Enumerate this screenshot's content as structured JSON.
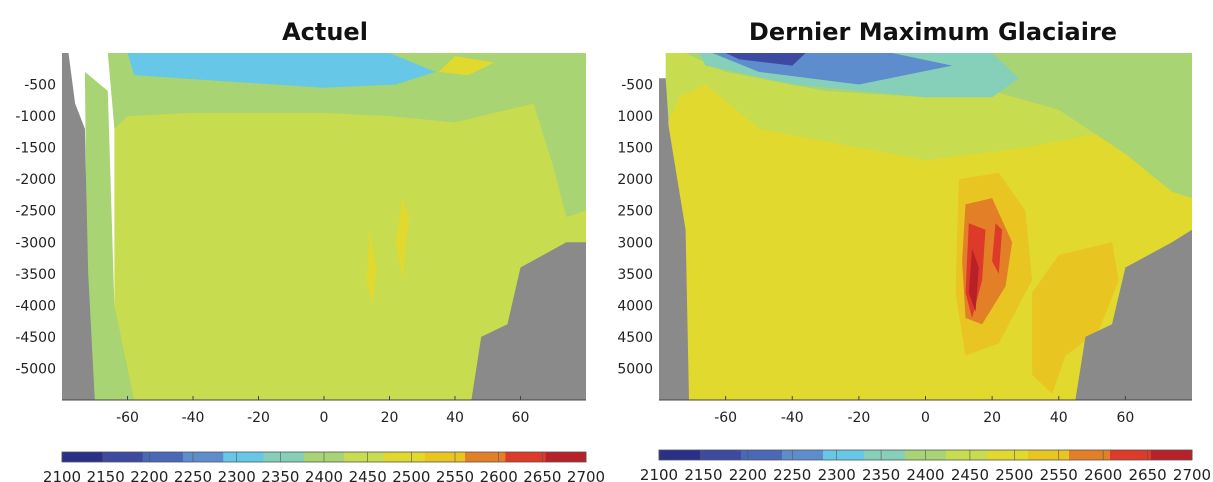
{
  "chart_data": [
    {
      "type": "heatmap",
      "title": "Actuel",
      "xlabel": "",
      "ylabel": "",
      "xlim": [
        -80,
        80
      ],
      "ylim": [
        -5500,
        0
      ],
      "x_ticks": [
        -60,
        -40,
        -20,
        0,
        20,
        40,
        60
      ],
      "x_tick_labels": [
        "-60",
        "-40",
        "-20",
        "0",
        "20",
        "40",
        "60"
      ],
      "y_ticks": [
        -500,
        -1000,
        -1500,
        -2000,
        -2500,
        -3000,
        -3500,
        -4000,
        -4500,
        -5000
      ],
      "y_tick_labels": [
        "-500",
        "-1000",
        "-1500",
        "-2000",
        "-2500",
        "-3000",
        "-3500",
        "-4000",
        "-4500",
        "-5000"
      ],
      "grid": false,
      "regions": [
        {
          "level": 2450,
          "note_color": "#a9d46a",
          "poly": [
            [
              -64,
              -200
            ],
            [
              80,
              -200
            ],
            [
              80,
              -5500
            ],
            [
              -64,
              -5500
            ]
          ]
        },
        {
          "level": 2400,
          "poly": [
            [
              -73,
              -300
            ],
            [
              -66,
              -600
            ],
            [
              -64,
              -4000
            ],
            [
              -58,
              -5500
            ],
            [
              -72,
              -5500
            ]
          ]
        },
        {
          "level": 2400,
          "poly": [
            [
              -66,
              0
            ],
            [
              80,
              0
            ],
            [
              80,
              -2500
            ],
            [
              74,
              -2600
            ],
            [
              70,
              -1800
            ],
            [
              64,
              -800
            ],
            [
              40,
              -1100
            ],
            [
              20,
              -1000
            ],
            [
              0,
              -950
            ],
            [
              -40,
              -950
            ],
            [
              -60,
              -1000
            ],
            [
              -64,
              -1200
            ]
          ]
        },
        {
          "level": 2300,
          "poly": [
            [
              -60,
              0
            ],
            [
              20,
              0
            ],
            [
              34,
              -300
            ],
            [
              22,
              -500
            ],
            [
              0,
              -550
            ],
            [
              -30,
              -450
            ],
            [
              -58,
              -350
            ]
          ]
        },
        {
          "level": 2500,
          "poly": [
            [
              40,
              -50
            ],
            [
              52,
              -150
            ],
            [
              44,
              -350
            ],
            [
              35,
              -300
            ]
          ]
        },
        {
          "level": 2500,
          "poly": [
            [
              14,
              -2800
            ],
            [
              16,
              -3400
            ],
            [
              15,
              -4000
            ],
            [
              13,
              -3600
            ]
          ]
        },
        {
          "level": 2500,
          "poly": [
            [
              24,
              -2300
            ],
            [
              26,
              -2600
            ],
            [
              24,
              -3600
            ],
            [
              22,
              -3000
            ]
          ]
        }
      ],
      "land_mask": [
        {
          "poly": [
            [
              -80,
              0
            ],
            [
              -78,
              0
            ],
            [
              -76,
              -800
            ],
            [
              -73,
              -1200
            ],
            [
              -72,
              -3500
            ],
            [
              -70,
              -5500
            ],
            [
              -80,
              -5500
            ]
          ]
        },
        {
          "poly": [
            [
              60,
              -3400
            ],
            [
              74,
              -3000
            ],
            [
              80,
              -3000
            ],
            [
              80,
              -5500
            ],
            [
              45,
              -5500
            ],
            [
              48,
              -4500
            ],
            [
              56,
              -4300
            ]
          ]
        }
      ]
    },
    {
      "type": "heatmap",
      "title": "Dernier Maximum Glaciaire",
      "xlabel": "",
      "ylabel": "",
      "xlim": [
        -80,
        80
      ],
      "ylim": [
        -5500,
        0
      ],
      "x_ticks": [
        -60,
        -40,
        -20,
        0,
        20,
        40,
        60
      ],
      "x_tick_labels": [
        "-60",
        "-40",
        "-20",
        "0",
        "20",
        "40",
        "60"
      ],
      "y_ticks": [
        -500,
        -1000,
        -1500,
        -2000,
        -2500,
        -3000,
        -3500,
        -4000,
        -4500,
        -5000
      ],
      "y_tick_labels": [
        "-500",
        "1000",
        "1500",
        "2000",
        "2500",
        "3000",
        "3500",
        "4000",
        "4500",
        "5000"
      ],
      "grid": false,
      "regions": [
        {
          "level": 2500,
          "poly": [
            [
              -77,
              -100
            ],
            [
              80,
              -100
            ],
            [
              80,
              -5500
            ],
            [
              -77,
              -5500
            ]
          ]
        },
        {
          "level": 2450,
          "poly": [
            [
              -78,
              -1200
            ],
            [
              -74,
              -700
            ],
            [
              -66,
              -500
            ],
            [
              -50,
              -1200
            ],
            [
              -20,
              -1500
            ],
            [
              0,
              -1700
            ],
            [
              30,
              -1500
            ],
            [
              50,
              -1300
            ],
            [
              80,
              -1000
            ],
            [
              80,
              0
            ],
            [
              -78,
              0
            ]
          ]
        },
        {
          "level": 2400,
          "poly": [
            [
              -72,
              0
            ],
            [
              80,
              0
            ],
            [
              80,
              -2300
            ],
            [
              74,
              -2200
            ],
            [
              60,
              -1600
            ],
            [
              40,
              -900
            ],
            [
              20,
              -600
            ],
            [
              0,
              -700
            ],
            [
              -30,
              -600
            ],
            [
              -60,
              -300
            ]
          ]
        },
        {
          "level": 2350,
          "poly": [
            [
              -68,
              0
            ],
            [
              20,
              0
            ],
            [
              28,
              -400
            ],
            [
              20,
              -700
            ],
            [
              0,
              -700
            ],
            [
              -40,
              -500
            ],
            [
              -66,
              -200
            ]
          ]
        },
        {
          "level": 2250,
          "poly": [
            [
              -64,
              0
            ],
            [
              -10,
              0
            ],
            [
              8,
              -200
            ],
            [
              -20,
              -500
            ],
            [
              -50,
              -300
            ]
          ]
        },
        {
          "level": 2150,
          "poly": [
            [
              -60,
              0
            ],
            [
              -36,
              0
            ],
            [
              -40,
              -200
            ],
            [
              -56,
              -100
            ]
          ]
        },
        {
          "level": 2550,
          "poly": [
            [
              10,
              -2000
            ],
            [
              22,
              -1900
            ],
            [
              30,
              -2500
            ],
            [
              32,
              -3600
            ],
            [
              22,
              -4600
            ],
            [
              12,
              -4800
            ],
            [
              9,
              -3800
            ]
          ]
        },
        {
          "level": 2550,
          "poly": [
            [
              32,
              -3800
            ],
            [
              40,
              -3200
            ],
            [
              56,
              -3000
            ],
            [
              58,
              -3600
            ],
            [
              52,
              -4400
            ],
            [
              42,
              -4800
            ],
            [
              38,
              -5400
            ],
            [
              32,
              -5100
            ]
          ]
        },
        {
          "level": 2600,
          "poly": [
            [
              12,
              -2400
            ],
            [
              20,
              -2300
            ],
            [
              26,
              -3000
            ],
            [
              24,
              -3700
            ],
            [
              17,
              -4300
            ],
            [
              12,
              -4200
            ],
            [
              11,
              -3300
            ]
          ]
        },
        {
          "level": 2650,
          "poly": [
            [
              13,
              -2700
            ],
            [
              18,
              -2800
            ],
            [
              17,
              -3600
            ],
            [
              14,
              -4200
            ],
            [
              12,
              -3800
            ]
          ]
        },
        {
          "level": 2650,
          "poly": [
            [
              21,
              -2700
            ],
            [
              23,
              -2800
            ],
            [
              22,
              -3500
            ],
            [
              20,
              -3300
            ]
          ]
        },
        {
          "level": 2700,
          "poly": [
            [
              14,
              -3100
            ],
            [
              16,
              -3400
            ],
            [
              15,
              -4100
            ],
            [
              13,
              -3800
            ]
          ]
        }
      ],
      "land_mask": [
        {
          "poly": [
            [
              -80,
              -400
            ],
            [
              -78,
              -400
            ],
            [
              -77,
              -1200
            ],
            [
              -72,
              -2800
            ],
            [
              -71,
              -5500
            ],
            [
              -80,
              -5500
            ]
          ]
        },
        {
          "poly": [
            [
              60,
              -3400
            ],
            [
              74,
              -3000
            ],
            [
              80,
              -2800
            ],
            [
              80,
              -5500
            ],
            [
              45,
              -5500
            ],
            [
              48,
              -4500
            ],
            [
              56,
              -4300
            ]
          ]
        }
      ]
    }
  ],
  "colorbar": {
    "levels": [
      2100,
      2150,
      2200,
      2250,
      2300,
      2350,
      2400,
      2450,
      2500,
      2550,
      2600,
      2650,
      2700
    ],
    "tick_labels": [
      "2100",
      "2150",
      "2200",
      "2250",
      "2300",
      "2350",
      "2400",
      "2450",
      "2500",
      "2550",
      "2600",
      "2650",
      "2700"
    ],
    "colors": [
      "#2a2f87",
      "#3e4aa2",
      "#4a68b8",
      "#5d8dcc",
      "#66c8e6",
      "#86cfb9",
      "#a8d474",
      "#c7dc4e",
      "#e2d92e",
      "#e8c521",
      "#e37f27",
      "#dd3a2a",
      "#b82128"
    ]
  },
  "colors": {
    "land": "#8a8a8a",
    "background": "#ffffff"
  }
}
